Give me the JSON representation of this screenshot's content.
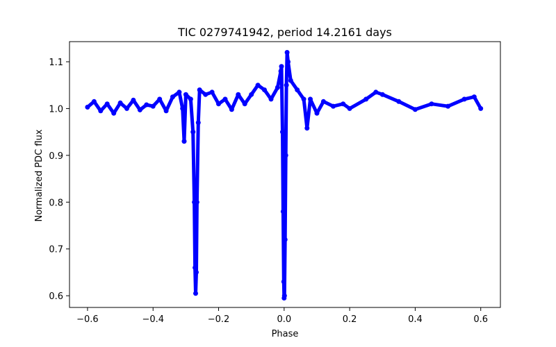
{
  "chart_data": {
    "type": "scatter",
    "title": "TIC 0279741942, period 14.2161 days",
    "xlabel": "Phase",
    "ylabel": "Normalized PDC flux",
    "xlim": [
      -0.655,
      0.66
    ],
    "ylim": [
      0.575,
      1.143
    ],
    "xticks": [
      -0.6,
      -0.4,
      -0.2,
      0.0,
      0.2,
      0.4,
      0.6
    ],
    "xtick_labels": [
      "−0.6",
      "−0.4",
      "−0.2",
      "0.0",
      "0.2",
      "0.4",
      "0.6"
    ],
    "yticks": [
      0.6,
      0.7,
      0.8,
      0.9,
      1.0,
      1.1
    ],
    "ytick_labels": [
      "0.6",
      "0.7",
      "0.8",
      "0.9",
      "1.0",
      "1.1"
    ],
    "grid": false,
    "marker_color": "#0000ff",
    "series": [
      {
        "name": "flux",
        "points": [
          [
            -0.6,
            1.003
          ],
          [
            -0.58,
            1.015
          ],
          [
            -0.56,
            0.995
          ],
          [
            -0.54,
            1.01
          ],
          [
            -0.52,
            0.99
          ],
          [
            -0.5,
            1.012
          ],
          [
            -0.48,
            1.0
          ],
          [
            -0.46,
            1.018
          ],
          [
            -0.44,
            0.997
          ],
          [
            -0.42,
            1.008
          ],
          [
            -0.4,
            1.005
          ],
          [
            -0.38,
            1.02
          ],
          [
            -0.36,
            0.995
          ],
          [
            -0.34,
            1.025
          ],
          [
            -0.32,
            1.035
          ],
          [
            -0.31,
            1.0
          ],
          [
            -0.305,
            0.93
          ],
          [
            -0.3,
            1.03
          ],
          [
            -0.285,
            1.02
          ],
          [
            -0.278,
            0.95
          ],
          [
            -0.274,
            0.8
          ],
          [
            -0.272,
            0.66
          ],
          [
            -0.27,
            0.605
          ],
          [
            -0.268,
            0.65
          ],
          [
            -0.266,
            0.8
          ],
          [
            -0.262,
            0.97
          ],
          [
            -0.258,
            1.04
          ],
          [
            -0.24,
            1.03
          ],
          [
            -0.22,
            1.035
          ],
          [
            -0.2,
            1.01
          ],
          [
            -0.18,
            1.02
          ],
          [
            -0.16,
            0.998
          ],
          [
            -0.14,
            1.03
          ],
          [
            -0.12,
            1.01
          ],
          [
            -0.1,
            1.03
          ],
          [
            -0.08,
            1.05
          ],
          [
            -0.06,
            1.04
          ],
          [
            -0.04,
            1.02
          ],
          [
            -0.02,
            1.045
          ],
          [
            -0.01,
            1.08
          ],
          [
            -0.008,
            1.09
          ],
          [
            -0.005,
            0.95
          ],
          [
            -0.003,
            0.78
          ],
          [
            -0.001,
            0.63
          ],
          [
            0.0,
            0.595
          ],
          [
            0.001,
            0.6
          ],
          [
            0.003,
            0.72
          ],
          [
            0.005,
            0.9
          ],
          [
            0.007,
            1.05
          ],
          [
            0.009,
            1.12
          ],
          [
            0.012,
            1.1
          ],
          [
            0.02,
            1.06
          ],
          [
            0.04,
            1.04
          ],
          [
            0.06,
            1.02
          ],
          [
            0.07,
            0.958
          ],
          [
            0.08,
            1.02
          ],
          [
            0.1,
            0.99
          ],
          [
            0.12,
            1.015
          ],
          [
            0.15,
            1.005
          ],
          [
            0.18,
            1.01
          ],
          [
            0.2,
            1.0
          ],
          [
            0.25,
            1.02
          ],
          [
            0.28,
            1.035
          ],
          [
            0.3,
            1.03
          ],
          [
            0.35,
            1.015
          ],
          [
            0.4,
            0.998
          ],
          [
            0.45,
            1.01
          ],
          [
            0.5,
            1.005
          ],
          [
            0.55,
            1.02
          ],
          [
            0.58,
            1.025
          ],
          [
            0.6,
            1.0
          ]
        ]
      }
    ]
  }
}
